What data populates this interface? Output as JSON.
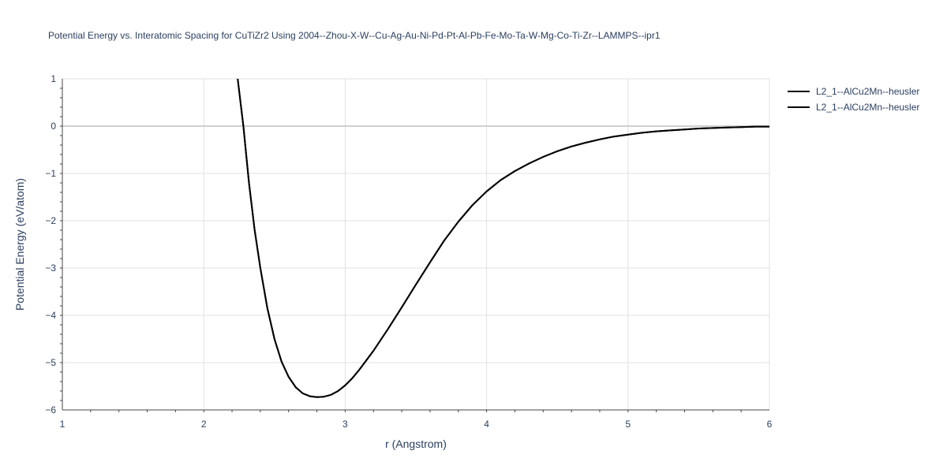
{
  "chart_data": {
    "type": "line",
    "title": "Potential Energy vs. Interatomic Spacing for CuTiZr2 Using 2004--Zhou-X-W--Cu-Ag-Au-Ni-Pd-Pt-Al-Pb-Fe-Mo-Ta-W-Mg-Co-Ti-Zr--LAMMPS--ipr1",
    "xlabel": "r (Angstrom)",
    "ylabel": "Potential Energy (eV/atom)",
    "xlim": [
      1,
      6
    ],
    "ylim": [
      -6,
      1
    ],
    "xticks": [
      "1",
      "2",
      "3",
      "4",
      "5",
      "6"
    ],
    "yticks": [
      "1",
      "0",
      "−1",
      "−2",
      "−3",
      "−4",
      "−5",
      "−6"
    ],
    "grid": true,
    "legend_position": "top-right",
    "series": [
      {
        "name": "L2_1--AlCu2Mn--heusler",
        "color": "#000000",
        "x": [
          2.24,
          2.28,
          2.32,
          2.36,
          2.4,
          2.45,
          2.5,
          2.55,
          2.6,
          2.65,
          2.7,
          2.75,
          2.8,
          2.85,
          2.9,
          2.95,
          3.0,
          3.05,
          3.1,
          3.2,
          3.3,
          3.4,
          3.5,
          3.6,
          3.7,
          3.8,
          3.9,
          4.0,
          4.1,
          4.2,
          4.3,
          4.4,
          4.5,
          4.6,
          4.7,
          4.8,
          4.9,
          5.0,
          5.1,
          5.2,
          5.3,
          5.4,
          5.5,
          5.6,
          5.7,
          5.8,
          5.9,
          6.0
        ],
        "y": [
          1.0,
          0.0,
          -1.2,
          -2.2,
          -3.0,
          -3.85,
          -4.5,
          -4.98,
          -5.3,
          -5.52,
          -5.65,
          -5.71,
          -5.73,
          -5.72,
          -5.68,
          -5.6,
          -5.48,
          -5.33,
          -5.15,
          -4.75,
          -4.3,
          -3.83,
          -3.35,
          -2.88,
          -2.42,
          -2.02,
          -1.67,
          -1.38,
          -1.14,
          -0.95,
          -0.79,
          -0.65,
          -0.53,
          -0.43,
          -0.35,
          -0.28,
          -0.22,
          -0.18,
          -0.14,
          -0.11,
          -0.09,
          -0.07,
          -0.05,
          -0.04,
          -0.03,
          -0.02,
          -0.01,
          -0.01
        ]
      },
      {
        "name": "L2_1--AlCu2Mn--heusler",
        "color": "#000000",
        "x": [
          2.24,
          2.28,
          2.32,
          2.36,
          2.4,
          2.45,
          2.5,
          2.55,
          2.6,
          2.65,
          2.7,
          2.75,
          2.8,
          2.85,
          2.9,
          2.95,
          3.0,
          3.05,
          3.1,
          3.2,
          3.3,
          3.4,
          3.5,
          3.6,
          3.7,
          3.8,
          3.9,
          4.0,
          4.1,
          4.2,
          4.3,
          4.4,
          4.5,
          4.6,
          4.7,
          4.8,
          4.9,
          5.0,
          5.1,
          5.2,
          5.3,
          5.4,
          5.5,
          5.6,
          5.7,
          5.8,
          5.9,
          6.0
        ],
        "y": [
          1.0,
          0.0,
          -1.2,
          -2.2,
          -3.0,
          -3.85,
          -4.5,
          -4.98,
          -5.3,
          -5.52,
          -5.65,
          -5.71,
          -5.73,
          -5.72,
          -5.68,
          -5.6,
          -5.48,
          -5.33,
          -5.15,
          -4.75,
          -4.3,
          -3.83,
          -3.35,
          -2.88,
          -2.42,
          -2.02,
          -1.67,
          -1.38,
          -1.14,
          -0.95,
          -0.79,
          -0.65,
          -0.53,
          -0.43,
          -0.35,
          -0.28,
          -0.22,
          -0.18,
          -0.14,
          -0.11,
          -0.09,
          -0.07,
          -0.05,
          -0.04,
          -0.03,
          -0.02,
          -0.01,
          -0.01
        ]
      }
    ]
  }
}
